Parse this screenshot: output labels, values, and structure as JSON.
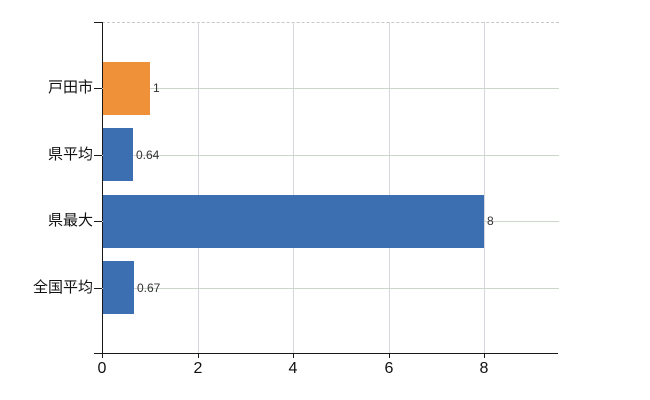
{
  "chart_data": {
    "type": "bar",
    "orientation": "horizontal",
    "categories": [
      "戸田市",
      "県平均",
      "県最大",
      "全国平均"
    ],
    "values": [
      1,
      0.64,
      8,
      0.67
    ],
    "value_labels": [
      "1",
      "0.64",
      "8",
      "0.67"
    ],
    "bar_colors": [
      "#ef9138",
      "#3c6fb1",
      "#3c6fb1",
      "#3c6fb1"
    ],
    "xticks": [
      0,
      2,
      4,
      6,
      8
    ],
    "xtick_labels": [
      "0",
      "2",
      "4",
      "6",
      "8"
    ],
    "xlim": [
      0,
      9.57
    ],
    "grid": true,
    "legend": false
  },
  "colors": {
    "highlight_orange": "#ef9138",
    "series_blue": "#3c6fb1",
    "axis": "#1a1a1a",
    "grid_horizontal": "#ccd6cb",
    "grid_vertical": "#d5d5dc",
    "grid_top_dashed": "#c7c7cc",
    "label_text": "#111111",
    "value_text": "#333333",
    "background": "#ffffff"
  }
}
